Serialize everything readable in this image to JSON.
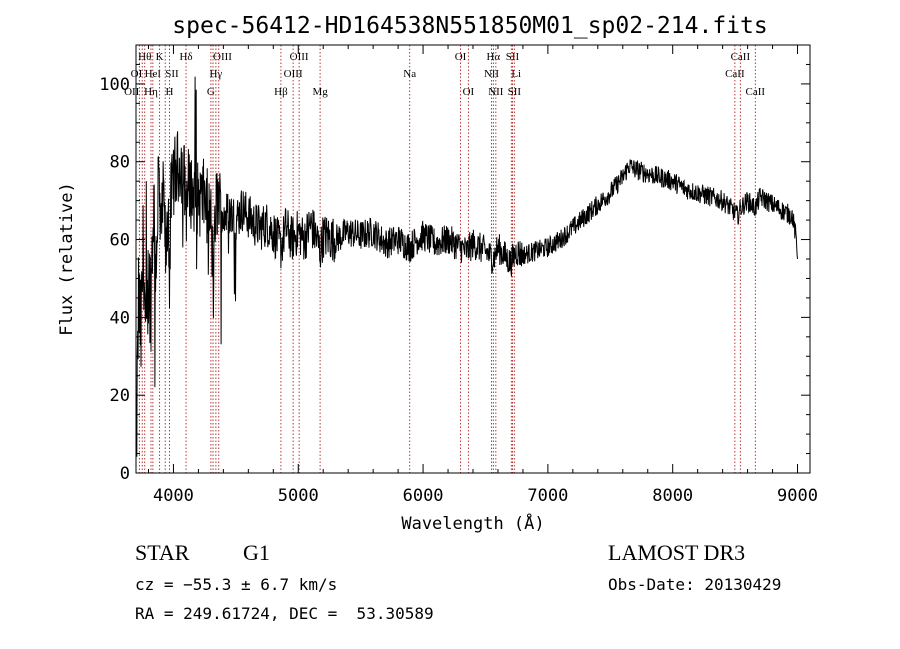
{
  "chart_data": {
    "type": "line",
    "title": "spec-56412-HD164538N551850M01_sp02-214.fits",
    "xlabel": "Wavelength (Å)",
    "ylabel": "Flux (relative)",
    "xlim": [
      3700,
      9100
    ],
    "ylim": [
      0,
      110
    ],
    "x_ticks": [
      4000,
      5000,
      6000,
      7000,
      8000,
      9000
    ],
    "x_tick_labels": [
      "4000",
      "5000",
      "6000",
      "7000",
      "8000",
      "9000"
    ],
    "y_ticks": [
      0,
      20,
      40,
      60,
      80,
      100
    ],
    "y_tick_labels": [
      "0",
      "20",
      "40",
      "60",
      "80",
      "100"
    ],
    "grid": false,
    "series": [
      {
        "color": "#000000",
        "x": [
          3700,
          3710,
          3720,
          3740,
          3760,
          3780,
          3800,
          3820,
          3840,
          3860,
          3880,
          3900,
          3920,
          3940,
          3960,
          3968,
          3980,
          4000,
          4030,
          4060,
          4090,
          4101,
          4120,
          4150,
          4200,
          4250,
          4300,
          4320,
          4340,
          4360,
          4400,
          4450,
          4500,
          4550,
          4600,
          4650,
          4700,
          4750,
          4800,
          4861,
          4900,
          4950,
          5000,
          5050,
          5100,
          5150,
          5175,
          5200,
          5300,
          5400,
          5500,
          5600,
          5700,
          5800,
          5893,
          5950,
          6000,
          6100,
          6200,
          6300,
          6350,
          6400,
          6450,
          6500,
          6563,
          6600,
          6650,
          6700,
          6750,
          6800,
          6900,
          7000,
          7100,
          7200,
          7300,
          7400,
          7500,
          7600,
          7650,
          7700,
          7800,
          7900,
          8000,
          8100,
          8200,
          8300,
          8400,
          8498,
          8520,
          8542,
          8600,
          8662,
          8700,
          8800,
          8900,
          8960,
          8990,
          9000
        ],
        "y": [
          0,
          20,
          45,
          35,
          60,
          30,
          50,
          45,
          70,
          55,
          75,
          60,
          72,
          55,
          68,
          50,
          70,
          76,
          78,
          80,
          75,
          68,
          74,
          72,
          70,
          71,
          65,
          48,
          69,
          70,
          66,
          67,
          65,
          68,
          66,
          64,
          63,
          64,
          62,
          58,
          63,
          60,
          62,
          60,
          64,
          60,
          57,
          61,
          60,
          62,
          61,
          62,
          59,
          60,
          58,
          60,
          61,
          59,
          60,
          58,
          57,
          59,
          58,
          57,
          55,
          58,
          56,
          54,
          57,
          56,
          57,
          58,
          60,
          63,
          66,
          69,
          72,
          76,
          79,
          78,
          77,
          76,
          75,
          73,
          72,
          71,
          70,
          67,
          66,
          68,
          70,
          68,
          71,
          69,
          67,
          66,
          60,
          55
        ]
      }
    ],
    "line_markers": [
      {
        "wave": 3727,
        "label": "OII",
        "row": 2,
        "align": "end"
      },
      {
        "wave": 3750,
        "label": "OI",
        "row": 1,
        "align": "end"
      },
      {
        "wave": 3770,
        "label": "Hθ",
        "row": 0,
        "align": "middle"
      },
      {
        "wave": 3820,
        "label": "Hη",
        "row": 2,
        "align": "middle"
      },
      {
        "wave": 3835,
        "label": "HeI",
        "row": 1,
        "align": "middle"
      },
      {
        "wave": 3889,
        "label": "K",
        "row": 0,
        "align": "middle"
      },
      {
        "wave": 3934,
        "label": "SII",
        "row": 1,
        "align": "start"
      },
      {
        "wave": 3968,
        "label": "H",
        "row": 2,
        "align": "middle"
      },
      {
        "wave": 4101,
        "label": "Hδ",
        "row": 0,
        "align": "middle"
      },
      {
        "wave": 4300,
        "label": "G",
        "row": 2,
        "align": "middle"
      },
      {
        "wave": 4317,
        "label": "OIII",
        "row": 0,
        "align": "start"
      },
      {
        "wave": 4340,
        "label": "Hγ",
        "row": 1,
        "align": "middle"
      },
      {
        "wave": 4363,
        "label": "",
        "row": 0,
        "align": "middle"
      },
      {
        "wave": 4861,
        "label": "Hβ",
        "row": 2,
        "align": "middle"
      },
      {
        "wave": 4959,
        "label": "OIII",
        "row": 1,
        "align": "middle"
      },
      {
        "wave": 5007,
        "label": "OIII",
        "row": 0,
        "align": "middle"
      },
      {
        "wave": 5175,
        "label": "Mg",
        "row": 2,
        "align": "middle"
      },
      {
        "wave": 5893,
        "label": "Na",
        "row": 1,
        "align": "middle"
      },
      {
        "wave": 6300,
        "label": "OI",
        "row": 0,
        "align": "middle"
      },
      {
        "wave": 6363,
        "label": "OI",
        "row": 2,
        "align": "middle"
      },
      {
        "wave": 6548,
        "label": "NII",
        "row": 1,
        "align": "middle"
      },
      {
        "wave": 6563,
        "label": "Hα",
        "row": 0,
        "align": "middle"
      },
      {
        "wave": 6583,
        "label": "NII",
        "row": 2,
        "align": "middle"
      },
      {
        "wave": 6707,
        "label": "Li",
        "row": 1,
        "align": "start"
      },
      {
        "wave": 6716,
        "label": "SII",
        "row": 0,
        "align": "middle"
      },
      {
        "wave": 6731,
        "label": "SII",
        "row": 2,
        "align": "middle"
      },
      {
        "wave": 8498,
        "label": "CaII",
        "row": 1,
        "align": "middle"
      },
      {
        "wave": 8542,
        "label": "CaII",
        "row": 0,
        "align": "middle"
      },
      {
        "wave": 8662,
        "label": "CaII",
        "row": 2,
        "align": "middle"
      }
    ]
  },
  "info": {
    "class": "STAR",
    "subclass": "G1",
    "survey": "LAMOST DR3",
    "redshift": "cz = −55.3 ± 6.7 km/s",
    "obs_date": "Obs-Date: 20130429",
    "coords": "RA = 249.61724, DEC =  53.30589"
  }
}
